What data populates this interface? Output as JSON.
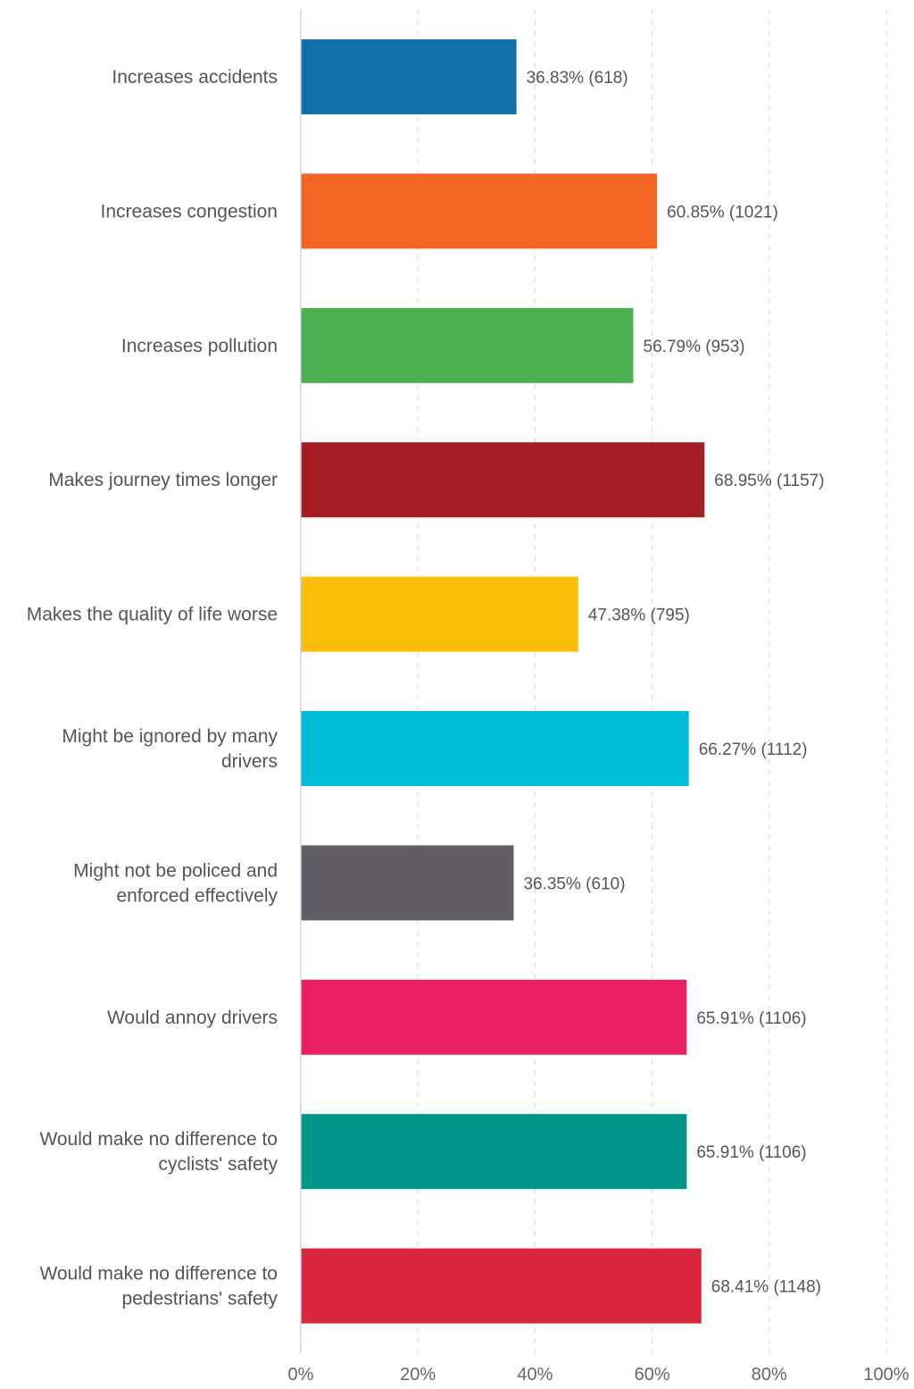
{
  "chart_data": {
    "type": "bar",
    "orientation": "horizontal",
    "title": "",
    "xlabel": "",
    "ylabel": "",
    "categories": [
      [
        "Increases accidents"
      ],
      [
        "Increases congestion"
      ],
      [
        "Increases pollution"
      ],
      [
        "Makes journey times longer"
      ],
      [
        "Makes the quality of life worse"
      ],
      [
        "Might be ignored by many",
        "drivers"
      ],
      [
        "Might not be policed and",
        "enforced effectively"
      ],
      [
        "Would annoy drivers"
      ],
      [
        "Would make no difference to",
        "cyclists' safety"
      ],
      [
        "Would make no difference to",
        "pedestrians' safety"
      ]
    ],
    "values": [
      36.83,
      60.85,
      56.79,
      68.95,
      47.38,
      66.27,
      36.35,
      65.91,
      65.91,
      68.41
    ],
    "counts": [
      618,
      1021,
      953,
      1157,
      795,
      1112,
      610,
      1106,
      1106,
      1148
    ],
    "data_labels": [
      "36.83% (618)",
      "60.85% (1021)",
      "56.79% (953)",
      "68.95% (1157)",
      "47.38% (795)",
      "66.27% (1112)",
      "36.35% (610)",
      "65.91% (1106)",
      "65.91% (1106)",
      "68.41% (1148)"
    ],
    "colors": [
      "#1170aa",
      "#f26522",
      "#4caf50",
      "#a31c21",
      "#fbbd08",
      "#00bcd4",
      "#625d64",
      "#e91e63",
      "#009688",
      "#d7263d"
    ],
    "xlim": [
      0,
      100
    ],
    "ticks": [
      0,
      20,
      40,
      60,
      80,
      100
    ],
    "tick_labels": [
      "0%",
      "20%",
      "40%",
      "60%",
      "80%",
      "100%"
    ],
    "grid": true,
    "legend": "none"
  }
}
